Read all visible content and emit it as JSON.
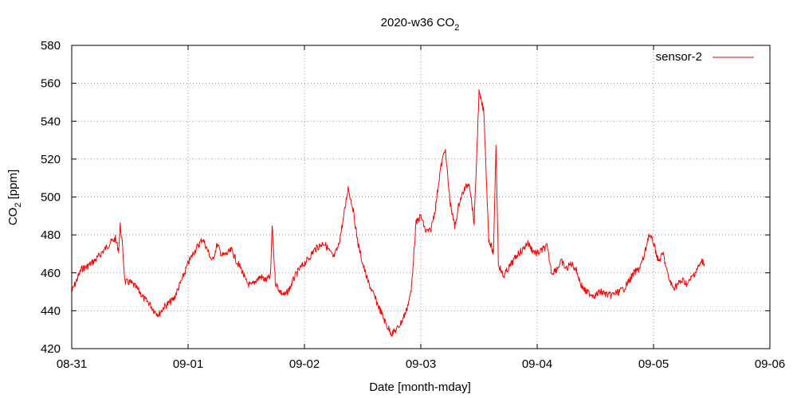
{
  "chart_data": {
    "type": "line",
    "title": {
      "base": "2020-w36 CO",
      "sub": "2"
    },
    "xlabel": "Date [month-mday]",
    "ylabel": {
      "base": "CO",
      "sub": "2",
      "rest": " [ppm]"
    },
    "ylim": [
      420,
      580
    ],
    "yticks": [
      420,
      440,
      460,
      480,
      500,
      520,
      540,
      560,
      580
    ],
    "xlim": [
      "2020-08-31T00:00",
      "2020-09-06T00:00"
    ],
    "xticks": [
      {
        "date": "2020-08-31",
        "label": "08-31"
      },
      {
        "date": "2020-09-01",
        "label": "09-01"
      },
      {
        "date": "2020-09-02",
        "label": "09-02"
      },
      {
        "date": "2020-09-03",
        "label": "09-03"
      },
      {
        "date": "2020-09-04",
        "label": "09-04"
      },
      {
        "date": "2020-09-05",
        "label": "09-05"
      },
      {
        "date": "2020-09-06",
        "label": "09-06"
      }
    ],
    "grid": true,
    "legend_position": "top-right",
    "series": [
      {
        "name": "sensor-2",
        "color": "#ff0000",
        "points": [
          [
            "2020-08-31T00:00",
            450
          ],
          [
            "2020-08-31T01:00",
            456
          ],
          [
            "2020-08-31T02:00",
            462
          ],
          [
            "2020-08-31T03:00",
            463
          ],
          [
            "2020-08-31T04:00",
            465
          ],
          [
            "2020-08-31T05:00",
            467
          ],
          [
            "2020-08-31T06:00",
            470
          ],
          [
            "2020-08-31T07:00",
            473
          ],
          [
            "2020-08-31T08:00",
            476
          ],
          [
            "2020-08-31T09:00",
            478
          ],
          [
            "2020-08-31T09:40",
            472
          ],
          [
            "2020-08-31T10:00",
            485
          ],
          [
            "2020-08-31T10:20",
            478
          ],
          [
            "2020-08-31T11:00",
            455
          ],
          [
            "2020-08-31T12:00",
            455
          ],
          [
            "2020-08-31T13:00",
            453
          ],
          [
            "2020-08-31T14:00",
            450
          ],
          [
            "2020-08-31T15:00",
            446
          ],
          [
            "2020-08-31T16:00",
            444
          ],
          [
            "2020-08-31T17:00",
            440
          ],
          [
            "2020-08-31T18:00",
            438
          ],
          [
            "2020-08-31T19:00",
            442
          ],
          [
            "2020-08-31T20:00",
            444
          ],
          [
            "2020-08-31T21:00",
            446
          ],
          [
            "2020-08-31T22:00",
            452
          ],
          [
            "2020-08-31T23:00",
            458
          ],
          [
            "2020-09-01T00:00",
            465
          ],
          [
            "2020-09-01T01:00",
            470
          ],
          [
            "2020-09-01T02:00",
            474
          ],
          [
            "2020-09-01T03:00",
            478
          ],
          [
            "2020-09-01T04:00",
            472
          ],
          [
            "2020-09-01T05:00",
            466
          ],
          [
            "2020-09-01T06:00",
            475
          ],
          [
            "2020-09-01T07:00",
            469
          ],
          [
            "2020-09-01T08:00",
            470
          ],
          [
            "2020-09-01T09:00",
            472
          ],
          [
            "2020-09-01T10:00",
            466
          ],
          [
            "2020-09-01T11:00",
            462
          ],
          [
            "2020-09-01T12:00",
            455
          ],
          [
            "2020-09-01T13:00",
            453
          ],
          [
            "2020-09-01T14:00",
            456
          ],
          [
            "2020-09-01T15:00",
            458
          ],
          [
            "2020-09-01T16:00",
            456
          ],
          [
            "2020-09-01T17:00",
            458
          ],
          [
            "2020-09-01T17:20",
            485
          ],
          [
            "2020-09-01T18:00",
            455
          ],
          [
            "2020-09-01T19:00",
            450
          ],
          [
            "2020-09-01T20:00",
            448
          ],
          [
            "2020-09-01T21:00",
            452
          ],
          [
            "2020-09-01T22:00",
            458
          ],
          [
            "2020-09-01T23:00",
            462
          ],
          [
            "2020-09-02T00:00",
            465
          ],
          [
            "2020-09-02T01:00",
            468
          ],
          [
            "2020-09-02T02:00",
            472
          ],
          [
            "2020-09-02T03:00",
            474
          ],
          [
            "2020-09-02T04:00",
            476
          ],
          [
            "2020-09-02T05:00",
            472
          ],
          [
            "2020-09-02T06:00",
            468
          ],
          [
            "2020-09-02T07:00",
            474
          ],
          [
            "2020-09-02T08:00",
            488
          ],
          [
            "2020-09-02T09:00",
            505
          ],
          [
            "2020-09-02T10:00",
            494
          ],
          [
            "2020-09-02T11:00",
            476
          ],
          [
            "2020-09-02T12:00",
            465
          ],
          [
            "2020-09-02T13:00",
            456
          ],
          [
            "2020-09-02T14:00",
            450
          ],
          [
            "2020-09-02T15:00",
            444
          ],
          [
            "2020-09-02T16:00",
            438
          ],
          [
            "2020-09-02T17:00",
            432
          ],
          [
            "2020-09-02T18:00",
            428
          ],
          [
            "2020-09-02T19:00",
            430
          ],
          [
            "2020-09-02T20:00",
            434
          ],
          [
            "2020-09-02T21:00",
            440
          ],
          [
            "2020-09-02T22:00",
            450
          ],
          [
            "2020-09-02T23:00",
            486
          ],
          [
            "2020-09-03T00:00",
            490
          ],
          [
            "2020-09-03T01:00",
            482
          ],
          [
            "2020-09-03T02:00",
            482
          ],
          [
            "2020-09-03T03:00",
            494
          ],
          [
            "2020-09-03T04:00",
            514
          ],
          [
            "2020-09-03T05:00",
            526
          ],
          [
            "2020-09-03T06:00",
            498
          ],
          [
            "2020-09-03T07:00",
            484
          ],
          [
            "2020-09-03T08:00",
            498
          ],
          [
            "2020-09-03T09:00",
            504
          ],
          [
            "2020-09-03T10:00",
            508
          ],
          [
            "2020-09-03T11:00",
            486
          ],
          [
            "2020-09-03T11:30",
            520
          ],
          [
            "2020-09-03T12:00",
            555
          ],
          [
            "2020-09-03T13:00",
            545
          ],
          [
            "2020-09-03T14:00",
            478
          ],
          [
            "2020-09-03T15:00",
            470
          ],
          [
            "2020-09-03T15:30",
            528
          ],
          [
            "2020-09-03T16:00",
            465
          ],
          [
            "2020-09-03T17:00",
            458
          ],
          [
            "2020-09-03T18:00",
            462
          ],
          [
            "2020-09-03T19:00",
            466
          ],
          [
            "2020-09-03T20:00",
            470
          ],
          [
            "2020-09-03T21:00",
            472
          ],
          [
            "2020-09-03T22:00",
            476
          ],
          [
            "2020-09-03T23:00",
            472
          ],
          [
            "2020-09-04T00:00",
            470
          ],
          [
            "2020-09-04T01:00",
            472
          ],
          [
            "2020-09-04T02:00",
            474
          ],
          [
            "2020-09-04T03:00",
            460
          ],
          [
            "2020-09-04T04:00",
            462
          ],
          [
            "2020-09-04T05:00",
            466
          ],
          [
            "2020-09-04T06:00",
            462
          ],
          [
            "2020-09-04T07:00",
            465
          ],
          [
            "2020-09-04T08:00",
            462
          ],
          [
            "2020-09-04T09:00",
            454
          ],
          [
            "2020-09-04T10:00",
            450
          ],
          [
            "2020-09-04T11:00",
            449
          ],
          [
            "2020-09-04T12:00",
            448
          ],
          [
            "2020-09-04T13:00",
            450
          ],
          [
            "2020-09-04T14:00",
            449
          ],
          [
            "2020-09-04T15:00",
            448
          ],
          [
            "2020-09-04T16:00",
            449
          ],
          [
            "2020-09-04T17:00",
            450
          ],
          [
            "2020-09-04T18:00",
            452
          ],
          [
            "2020-09-04T19:00",
            456
          ],
          [
            "2020-09-04T20:00",
            460
          ],
          [
            "2020-09-04T21:00",
            462
          ],
          [
            "2020-09-04T22:00",
            468
          ],
          [
            "2020-09-04T23:00",
            480
          ],
          [
            "2020-09-05T00:00",
            476
          ],
          [
            "2020-09-05T01:00",
            466
          ],
          [
            "2020-09-05T02:00",
            470
          ],
          [
            "2020-09-05T03:00",
            458
          ],
          [
            "2020-09-05T04:00",
            452
          ],
          [
            "2020-09-05T05:00",
            454
          ],
          [
            "2020-09-05T06:00",
            456
          ],
          [
            "2020-09-05T07:00",
            454
          ],
          [
            "2020-09-05T08:00",
            458
          ],
          [
            "2020-09-05T09:00",
            462
          ],
          [
            "2020-09-05T10:00",
            466
          ],
          [
            "2020-09-05T10:30",
            465
          ]
        ]
      }
    ]
  }
}
